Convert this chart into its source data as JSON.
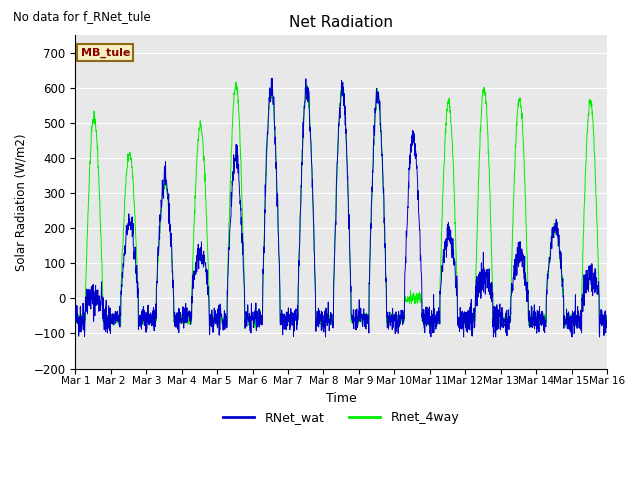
{
  "title": "Net Radiation",
  "xlabel": "Time",
  "ylabel": "Solar Radiation (W/m2)",
  "no_data_text": "No data for f_RNet_tule",
  "mb_tule_label": "MB_tule",
  "ylim": [
    -200,
    750
  ],
  "yticks": [
    -200,
    -100,
    0,
    100,
    200,
    300,
    400,
    500,
    600,
    700
  ],
  "xtick_labels": [
    "Mar 1",
    "Mar 2",
    "Mar 3",
    "Mar 4",
    "Mar 5",
    "Mar 6",
    "Mar 7",
    "Mar 8",
    "Mar 9",
    "Mar 10",
    "Mar 11",
    "Mar 12",
    "Mar 13",
    "Mar 14",
    "Mar 15",
    "Mar 16"
  ],
  "legend_blue": "RNet_wat",
  "legend_green": "Rnet_4way",
  "line_blue": "#0000cc",
  "line_green": "#00ee00",
  "fig_bg": "#ffffff",
  "plot_bg": "#e8e8e8",
  "n_points_per_day": 144,
  "n_days": 15,
  "seed": 42
}
